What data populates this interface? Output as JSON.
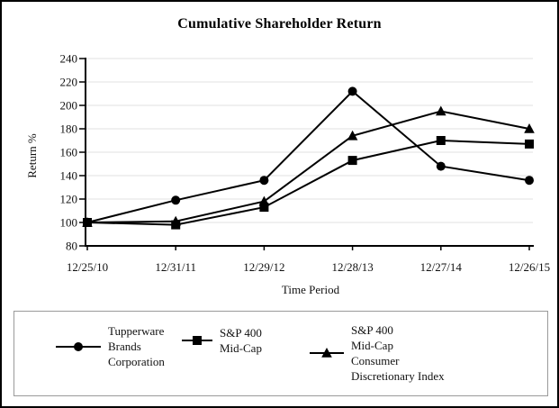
{
  "title": "Cumulative Shareholder Return",
  "chart_data": {
    "type": "line",
    "title": "Cumulative Shareholder Return",
    "xlabel": "Time Period",
    "ylabel": "Return %",
    "ylim": [
      80,
      240
    ],
    "yticks": [
      80,
      100,
      120,
      140,
      160,
      180,
      200,
      220,
      240
    ],
    "grid": "horizontal-gridlines",
    "legend_position": "bottom-box",
    "categories": [
      "12/25/10",
      "12/31/11",
      "12/29/12",
      "12/28/13",
      "12/27/14",
      "12/26/15"
    ],
    "series": [
      {
        "name": "Tupperware Brands Corporation",
        "legend_label": "Tupperware\nBrands\nCorporation",
        "marker": "circle",
        "color": "#000000",
        "values": [
          100,
          119,
          136,
          212,
          148,
          136
        ]
      },
      {
        "name": "S&P 400 Mid-Cap",
        "legend_label": "S&P 400\nMid-Cap",
        "marker": "square",
        "color": "#000000",
        "values": [
          100,
          98,
          113,
          153,
          170,
          167
        ]
      },
      {
        "name": "S&P 400 Mid-Cap Consumer Discretionary Index",
        "legend_label": "S&P 400\nMid-Cap\nConsumer\nDiscretionary Index",
        "marker": "triangle",
        "color": "#000000",
        "values": [
          100,
          101,
          118,
          174,
          195,
          180
        ]
      }
    ]
  },
  "colors": {
    "line": "#000000",
    "grid": "#e2e2e2",
    "axis": "#000000",
    "legend_border": "#9a9a9a",
    "frame_border": "#000000",
    "background": "#ffffff"
  }
}
